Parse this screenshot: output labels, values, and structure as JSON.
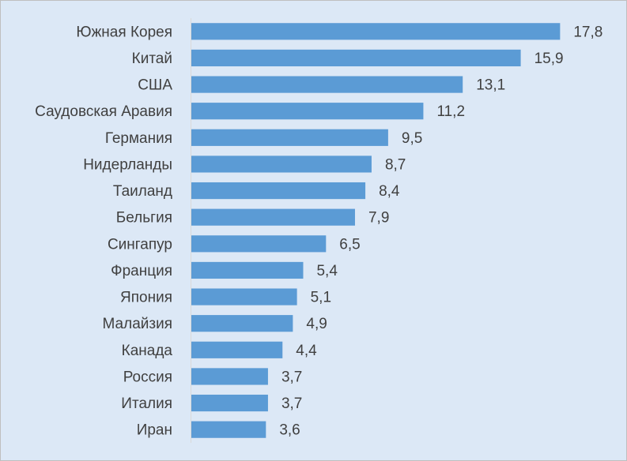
{
  "chart_data": {
    "type": "bar",
    "orientation": "horizontal",
    "title": "",
    "xlabel": "",
    "ylabel": "",
    "xlim": [
      0,
      18
    ],
    "grid": false,
    "legend": "none",
    "bar_color": "#5b9bd5",
    "background_color": "#dce8f6",
    "axis_color": "#d9d9d9",
    "text_color": "#404040",
    "categories": [
      "Южная Корея",
      "Китай",
      "США",
      "Саудовская Аравия",
      "Германия",
      "Нидерланды",
      "Таиланд",
      "Бельгия",
      "Сингапур",
      "Франция",
      "Япония",
      "Малайзия",
      "Канада",
      "Россия",
      "Италия",
      "Иран"
    ],
    "values": [
      17.8,
      15.9,
      13.1,
      11.2,
      9.5,
      8.7,
      8.4,
      7.9,
      6.5,
      5.4,
      5.1,
      4.9,
      4.4,
      3.7,
      3.7,
      3.6
    ],
    "value_labels": [
      "17,8",
      "15,9",
      "13,1",
      "11,2",
      "9,5",
      "8,7",
      "8,4",
      "7,9",
      "6,5",
      "5,4",
      "5,1",
      "4,9",
      "4,4",
      "3,7",
      "3,7",
      "3,6"
    ]
  }
}
